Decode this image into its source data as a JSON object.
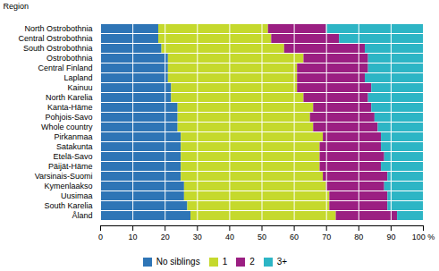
{
  "chart_data": {
    "type": "bar",
    "orientation": "horizontal",
    "stacked": true,
    "ylabel": "Region",
    "categories": [
      "North Ostrobothnia",
      "Central Ostrobothnia",
      "South Ostrobothnia",
      "Ostrobothnia",
      "Central Finland",
      "Lapland",
      "Kainuu",
      "North Karelia",
      "Kanta-Häme",
      "Pohjois-Savo",
      "Whole country",
      "Pirkanmaa",
      "Satakunta",
      "Etelä-Savo",
      "Päijät-Häme",
      "Varsinais-Suomi",
      "Kymenlaakso",
      "Uusimaa",
      "South Karelia",
      "Åland"
    ],
    "series": [
      {
        "name": "No siblings",
        "color": "#2e75b6",
        "values": [
          18,
          18,
          19,
          21,
          21,
          21,
          22,
          22,
          24,
          24,
          24,
          25,
          25,
          25,
          25,
          25,
          26,
          26,
          27,
          28
        ]
      },
      {
        "name": "1",
        "color": "#c5d92d",
        "values": [
          34,
          35,
          38,
          42,
          40,
          40,
          39,
          41,
          42,
          41,
          42,
          44,
          43,
          43,
          43,
          44,
          44,
          45,
          44,
          45
        ]
      },
      {
        "name": "2",
        "color": "#9b1f82",
        "values": [
          18,
          21,
          25,
          20,
          22,
          21,
          23,
          20,
          18,
          20,
          20,
          18,
          19,
          20,
          19,
          20,
          18,
          18,
          18,
          19
        ]
      },
      {
        "name": "3+",
        "color": "#2db5c5",
        "values": [
          30,
          26,
          18,
          17,
          17,
          18,
          16,
          17,
          16,
          15,
          14,
          13,
          13,
          12,
          13,
          11,
          12,
          11,
          11,
          8
        ]
      }
    ],
    "xlim": [
      0,
      100
    ],
    "xticks": [
      0,
      10,
      20,
      30,
      40,
      50,
      60,
      70,
      80,
      90,
      {
        "value": 100,
        "label": "100 %"
      }
    ],
    "grid": true,
    "legend": "bottom"
  }
}
